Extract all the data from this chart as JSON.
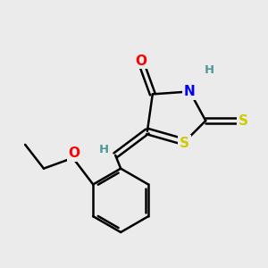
{
  "background_color": "#ebebeb",
  "atom_colors": {
    "C": "#000000",
    "H": "#4d9999",
    "N": "#0000ff",
    "O": "#ff0000",
    "S": "#cccc00"
  },
  "bond_color": "#000000",
  "bond_width": 1.8,
  "font_size_atoms": 11,
  "font_size_H": 9.5,
  "figsize": [
    3.0,
    3.0
  ],
  "dpi": 100
}
